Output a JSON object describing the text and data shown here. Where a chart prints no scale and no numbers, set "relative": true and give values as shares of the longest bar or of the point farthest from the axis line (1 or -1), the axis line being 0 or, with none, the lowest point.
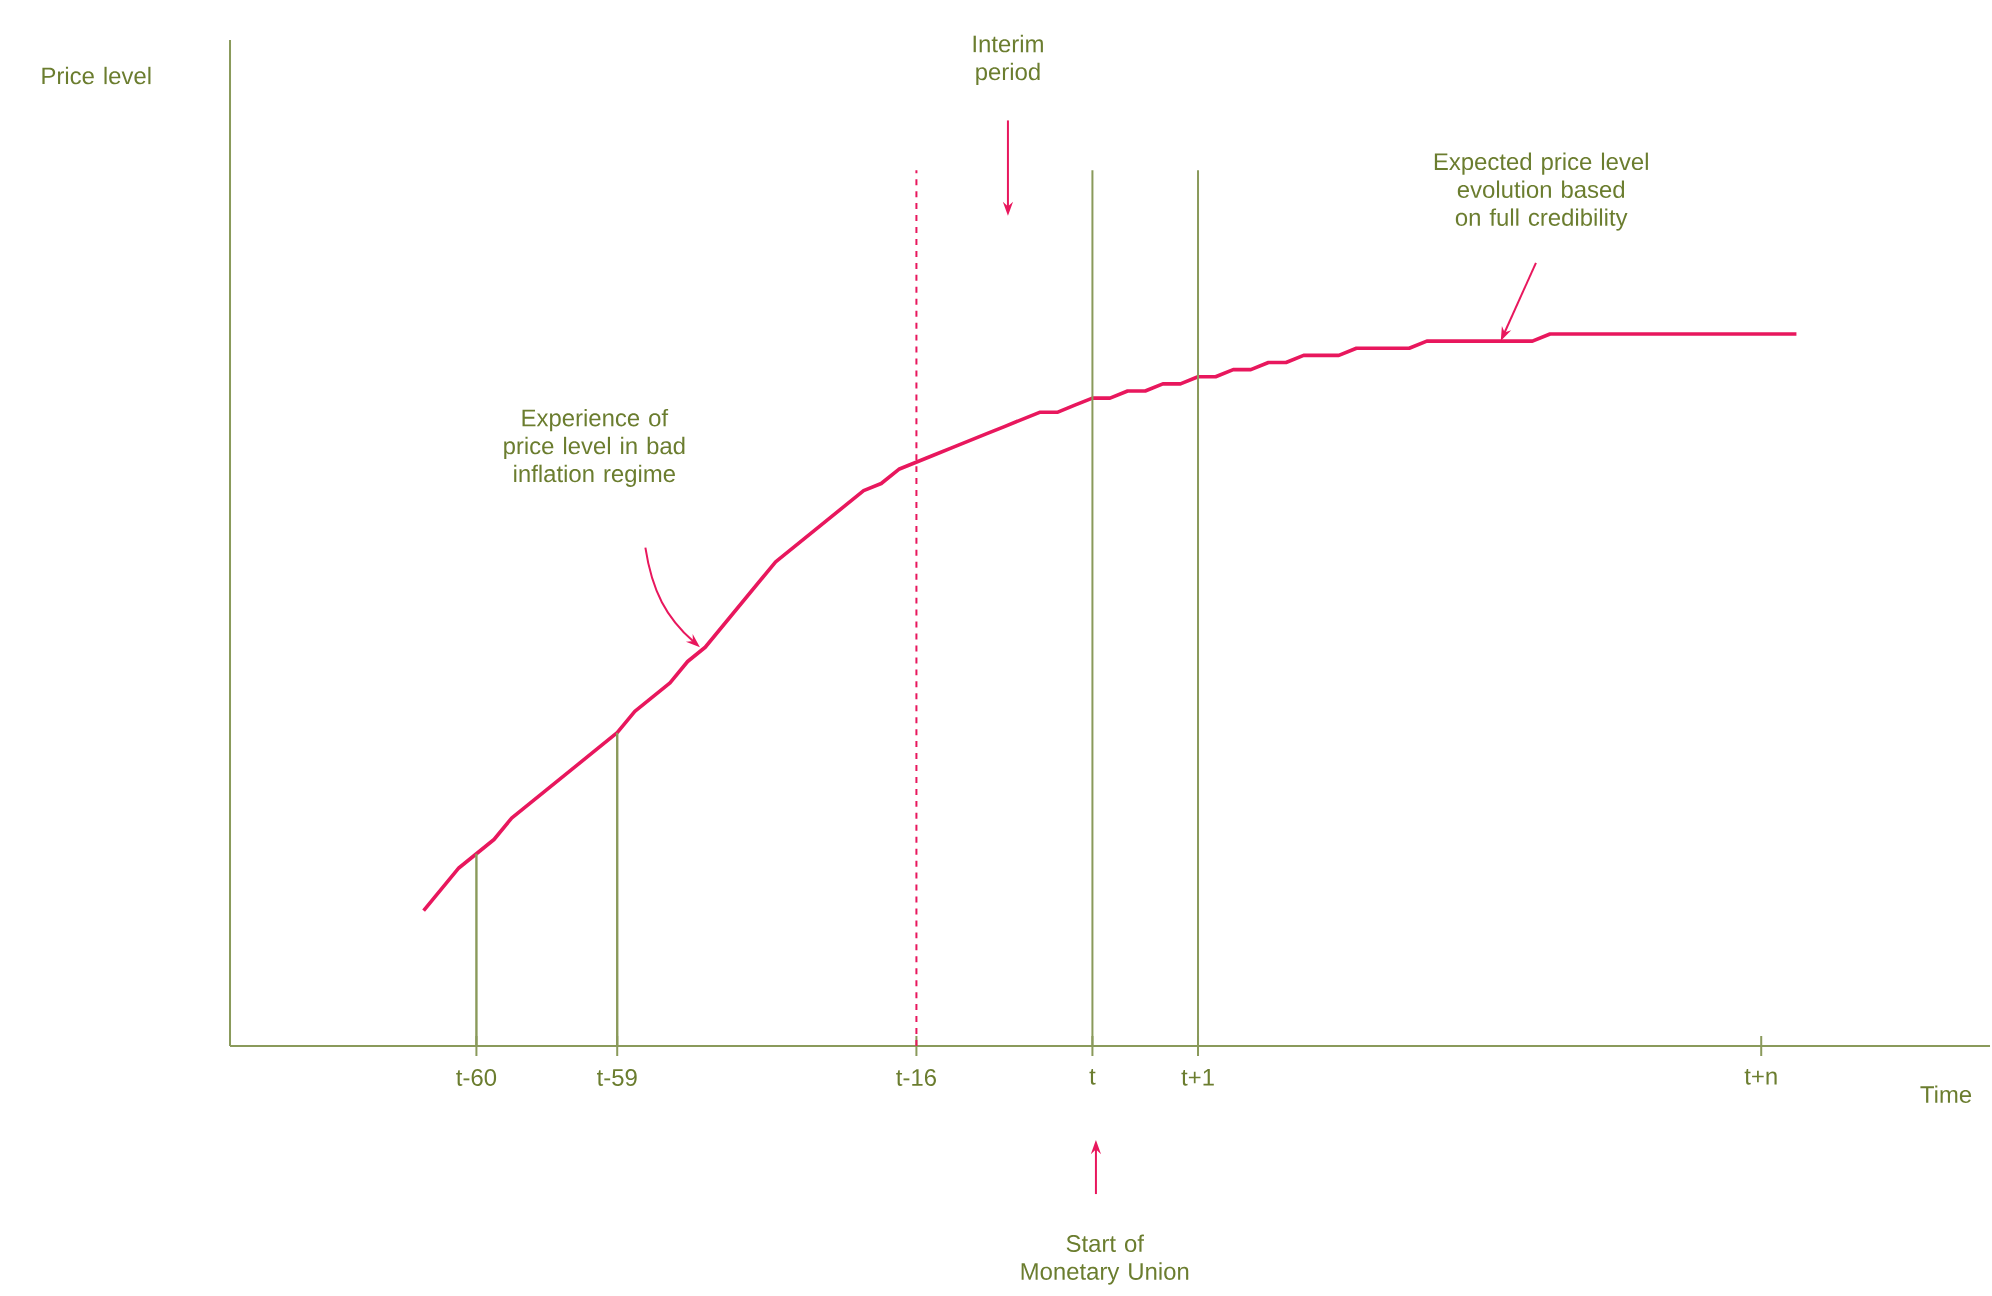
{
  "chart_data": {
    "type": "line",
    "relative": true,
    "xlabel": "Time",
    "categories": [
      null,
      null,
      null,
      null,
      null,
      null,
      null,
      null,
      null,
      null,
      null,
      null,
      null,
      null,
      "t-60",
      null,
      null,
      null,
      null,
      null,
      null,
      null,
      "t-59",
      null,
      null,
      null,
      null,
      null,
      null,
      null,
      null,
      null,
      null,
      null,
      null,
      null,
      null,
      null,
      null,
      "t-16",
      null,
      null,
      null,
      null,
      null,
      null,
      null,
      null,
      null,
      "t",
      null,
      null,
      null,
      null,
      null,
      "t+1",
      null,
      null,
      null,
      null,
      null,
      null,
      null,
      null,
      null,
      null,
      null,
      null,
      null,
      null,
      null,
      null,
      null,
      null,
      null,
      null,
      null,
      null,
      null,
      null,
      null,
      null,
      null,
      null,
      null,
      null,
      null,
      "t+n",
      null,
      null,
      null,
      null,
      null,
      null,
      null,
      null,
      null,
      null,
      null,
      null,
      null
    ],
    "series": [
      {
        "color": "#e8175d",
        "values": [
          null,
          null,
          null,
          null,
          null,
          null,
          null,
          null,
          null,
          null,
          null,
          0.19,
          0.22,
          0.25,
          0.27,
          0.29,
          0.32,
          0.34,
          0.36,
          0.38,
          0.4,
          0.42,
          0.44,
          0.47,
          0.49,
          0.51,
          0.54,
          0.56,
          0.59,
          0.62,
          0.65,
          0.68,
          0.7,
          0.72,
          0.74,
          0.76,
          0.78,
          0.79,
          0.81,
          0.82,
          0.83,
          0.84,
          0.85,
          0.86,
          0.87,
          0.88,
          0.89,
          0.89,
          0.9,
          0.91,
          0.91,
          0.92,
          0.92,
          0.93,
          0.93,
          0.94,
          0.94,
          0.95,
          0.95,
          0.96,
          0.96,
          0.97,
          0.97,
          0.97,
          0.98,
          0.98,
          0.98,
          0.98,
          0.99,
          0.99,
          0.99,
          0.99,
          0.99,
          0.99,
          0.99,
          1,
          1,
          1,
          1,
          1,
          1,
          1,
          1,
          1,
          1,
          1,
          1,
          1,
          1,
          1,
          null,
          null,
          null,
          null,
          null,
          null,
          null,
          null,
          null,
          null,
          null
        ]
      },
      {
        "type": "bar",
        "color": "#8a9a5b",
        "values": [
          null,
          null,
          null,
          null,
          null,
          null,
          null,
          null,
          null,
          null,
          null,
          null,
          null,
          null,
          0.27,
          null,
          null,
          null,
          null,
          null,
          null,
          null,
          0.44,
          null,
          null,
          null,
          null,
          null,
          null,
          null,
          null,
          null,
          null,
          null,
          null,
          null,
          null,
          null,
          null,
          null,
          null,
          null,
          null,
          null,
          null,
          null,
          null,
          null,
          null,
          null,
          null,
          null,
          null,
          null,
          null,
          null,
          null,
          null,
          null,
          null,
          null,
          null,
          null,
          null,
          null,
          null,
          null,
          null,
          null,
          null,
          null,
          null,
          null,
          null,
          null,
          null,
          null,
          null,
          null,
          null,
          null,
          null,
          null,
          null,
          null,
          null,
          null,
          null,
          null,
          null,
          null,
          null,
          null,
          null,
          null,
          null,
          null,
          null,
          null,
          null,
          null
        ]
      }
    ],
    "ref_lines": [
      {
        "axis": "x",
        "value": "t-16",
        "color": "#e8175d",
        "line_style": "dashed"
      },
      {
        "axis": "x",
        "value": "t",
        "color": "#8a9a5b",
        "line_style": "solid"
      },
      {
        "axis": "x",
        "value": "t+1",
        "color": "#8a9a5b",
        "line_style": "solid"
      }
    ],
    "annotations": [
      "Interim period",
      "Experience of price level in bad inflation regime",
      "Expected price level evolution based on full credibility",
      "Start of Monetary Union",
      "Price level"
    ]
  }
}
